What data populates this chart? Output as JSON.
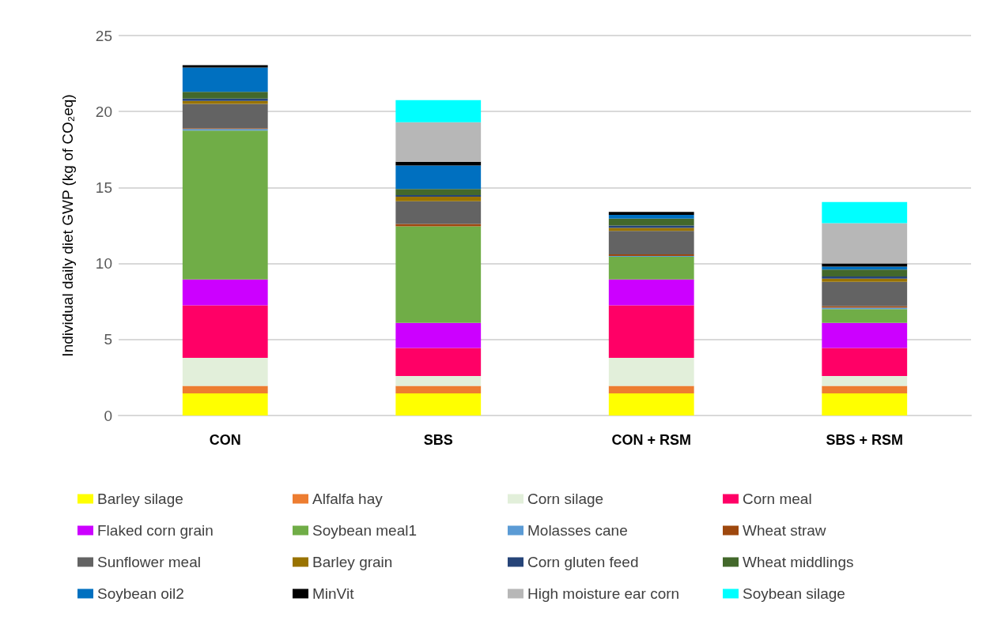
{
  "chart_data": {
    "type": "bar",
    "stacked": true,
    "ylabel": "Individual daily diet GWP (kg of CO₂eq)",
    "categories": [
      "CON",
      "SBS",
      "CON + RSM",
      "SBS + RSM"
    ],
    "ylim": [
      0,
      25
    ],
    "yticks": [
      0,
      5,
      10,
      15,
      20,
      25
    ],
    "grid": "y",
    "legend": "bottom",
    "series": [
      {
        "name": "Barley silage",
        "color": "#ffff00",
        "values": [
          1.45,
          1.45,
          1.45,
          1.45
        ]
      },
      {
        "name": "Alfalfa hay",
        "color": "#ed7d31",
        "values": [
          0.5,
          0.5,
          0.5,
          0.5
        ]
      },
      {
        "name": "Corn silage",
        "color": "#e2efda",
        "values": [
          1.85,
          0.65,
          1.85,
          0.65
        ]
      },
      {
        "name": "Corn meal",
        "color": "#ff0066",
        "values": [
          3.45,
          1.85,
          3.45,
          1.85
        ]
      },
      {
        "name": "Flaked corn grain",
        "color": "#cc00ff",
        "values": [
          1.7,
          1.65,
          1.7,
          1.65
        ]
      },
      {
        "name": "Soybean meal1",
        "color": "#70ad47",
        "values": [
          9.8,
          6.35,
          1.5,
          0.9
        ]
      },
      {
        "name": "Molasses cane",
        "color": "#5b9bd5",
        "values": [
          0.1,
          null,
          0.05,
          0.1
        ]
      },
      {
        "name": "Wheat straw",
        "color": "#9e480e",
        "values": [
          0.05,
          0.15,
          0.1,
          0.1
        ]
      },
      {
        "name": "Sunflower meal",
        "color": "#636363",
        "values": [
          1.6,
          1.5,
          1.55,
          1.6
        ]
      },
      {
        "name": "Barley grain",
        "color": "#997300",
        "values": [
          0.2,
          0.3,
          0.2,
          0.2
        ]
      },
      {
        "name": "Corn gluten feed",
        "color": "#264478",
        "values": [
          0.15,
          0.1,
          0.15,
          0.15
        ]
      },
      {
        "name": "Wheat middlings",
        "color": "#43682b",
        "values": [
          0.45,
          0.4,
          0.45,
          0.45
        ]
      },
      {
        "name": "Soybean oil2",
        "color": "#0070c0",
        "values": [
          1.6,
          1.55,
          0.25,
          0.2
        ]
      },
      {
        "name": "MinVit",
        "color": "#000000",
        "values": [
          0.15,
          0.25,
          0.2,
          0.2
        ]
      },
      {
        "name": "High moisture ear corn",
        "color": "#b7b7b7",
        "values": [
          0,
          2.6,
          0,
          2.65
        ]
      },
      {
        "name": "Soybean silage",
        "color": "#00ffff",
        "values": [
          0,
          1.45,
          0,
          1.4
        ]
      }
    ]
  }
}
